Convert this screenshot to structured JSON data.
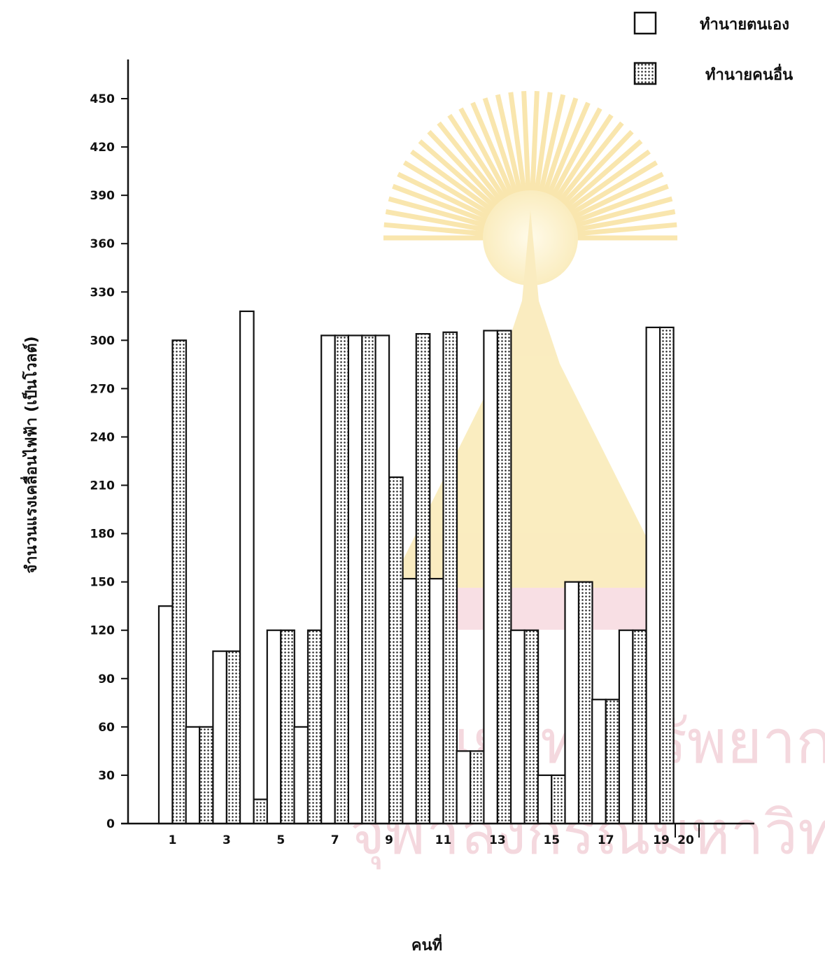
{
  "chart_data": {
    "type": "bar",
    "title": "",
    "xlabel": "คนที่",
    "ylabel": "จำนวนแรงเคลื่อนไฟฟ้า (เป็นโวลต์)",
    "ylim": [
      0,
      475
    ],
    "y_ticks": [
      0,
      30,
      60,
      90,
      120,
      150,
      180,
      210,
      240,
      270,
      300,
      330,
      360,
      390,
      420,
      450
    ],
    "x_tick_labels": [
      "1",
      "3",
      "5",
      "7",
      "9",
      "11",
      "13",
      "15",
      "17",
      "19",
      "20"
    ],
    "categories": [
      "1",
      "2",
      "3",
      "4",
      "5",
      "6",
      "7",
      "8",
      "9",
      "10",
      "11",
      "12",
      "13",
      "14",
      "15",
      "16",
      "17",
      "18",
      "19",
      "20"
    ],
    "series": [
      {
        "name": "ทำนายตนเอง",
        "pattern": "plain",
        "values": [
          135,
          60,
          107,
          318,
          120,
          60,
          303,
          303,
          303,
          152,
          152,
          45,
          306,
          120,
          30,
          150,
          77,
          120,
          308,
          null
        ]
      },
      {
        "name": "ทำนายคนอื่น",
        "pattern": "dotted",
        "values": [
          300,
          60,
          107,
          15,
          120,
          120,
          303,
          303,
          215,
          304,
          305,
          45,
          306,
          120,
          30,
          150,
          77,
          120,
          308,
          null
        ]
      }
    ],
    "legend_position": "top-right",
    "grid": false
  },
  "colors": {
    "ink": "#111111",
    "dots": "#222222",
    "watermark": "#f3c94d",
    "watermark_text": "#d98aa0"
  }
}
